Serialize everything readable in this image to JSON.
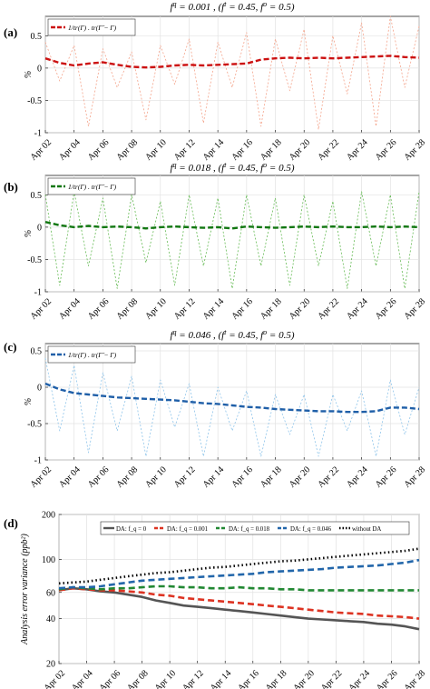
{
  "chart_data": [
    {
      "type": "line",
      "panel_label": "(a)",
      "title": "f^q = 0.001 , (f^t = 0.45, f^o = 0.5)",
      "ylabel": "%",
      "xlabel": "",
      "ylim": [
        -1,
        0.8
      ],
      "yticks": [
        "-1",
        "-0.5",
        "0",
        "0.5"
      ],
      "xticks": [
        "Apr 02",
        "Apr 04",
        "Apr 06",
        "Apr 08",
        "Apr 10",
        "Apr 12",
        "Apr 14",
        "Apr 16",
        "Apr 18",
        "Apr 20",
        "Apr 22",
        "Apr 24",
        "Apr 26",
        "Apr 28"
      ],
      "grid": true,
      "legend": "top-left",
      "series": [
        {
          "name": "1/tr(Γ) . tr(Γ̂ − Γ)",
          "color": "#cc1111",
          "style": "dash-thick",
          "x": [
            2,
            3,
            4,
            5,
            6,
            7,
            8,
            9,
            10,
            11,
            12,
            13,
            14,
            15,
            16,
            17,
            18,
            19,
            20,
            21,
            22,
            23,
            24,
            25,
            26,
            27,
            28
          ],
          "values": [
            0.15,
            0.08,
            0.04,
            0.07,
            0.09,
            0.05,
            0.02,
            0.01,
            0.02,
            0.04,
            0.05,
            0.04,
            0.05,
            0.06,
            0.07,
            0.13,
            0.15,
            0.16,
            0.15,
            0.16,
            0.15,
            0.16,
            0.17,
            0.18,
            0.19,
            0.17,
            0.16
          ]
        },
        {
          "name": "",
          "color": "#f4a38a",
          "style": "dotted-thin",
          "x": [
            2,
            3,
            4,
            5,
            6,
            7,
            8,
            9,
            10,
            11,
            12,
            13,
            14,
            15,
            16,
            17,
            18,
            19,
            20,
            21,
            22,
            23,
            24,
            25,
            26,
            27,
            28
          ],
          "values": [
            0.4,
            -0.2,
            0.35,
            -0.9,
            0.3,
            -0.3,
            0.25,
            -0.8,
            0.35,
            -0.25,
            0.45,
            -0.85,
            0.4,
            -0.3,
            0.55,
            -0.9,
            0.45,
            -0.35,
            0.6,
            -0.95,
            0.5,
            -0.4,
            0.7,
            -0.9,
            0.8,
            -0.3,
            0.65
          ]
        }
      ]
    },
    {
      "type": "line",
      "panel_label": "(b)",
      "title": "f^q = 0.018 , (f^t = 0.45, f^o = 0.5)",
      "ylabel": "%",
      "xlabel": "",
      "ylim": [
        -1,
        0.8
      ],
      "yticks": [
        "-1",
        "-0.5",
        "0",
        "0.5"
      ],
      "xticks": [
        "Apr 02",
        "Apr 04",
        "Apr 06",
        "Apr 08",
        "Apr 10",
        "Apr 12",
        "Apr 14",
        "Apr 16",
        "Apr 18",
        "Apr 20",
        "Apr 22",
        "Apr 24",
        "Apr 26",
        "Apr 28"
      ],
      "grid": true,
      "legend": "top-left",
      "series": [
        {
          "name": "1/tr(Γ) . tr(Γ̂ − Γ)",
          "color": "#117711",
          "style": "dash-thick",
          "x": [
            2,
            3,
            4,
            5,
            6,
            7,
            8,
            9,
            10,
            11,
            12,
            13,
            14,
            15,
            16,
            17,
            18,
            19,
            20,
            21,
            22,
            23,
            24,
            25,
            26,
            27,
            28
          ],
          "values": [
            0.08,
            0.03,
            0.0,
            0.02,
            0.0,
            0.01,
            0.0,
            -0.02,
            0.0,
            0.01,
            0.0,
            -0.01,
            0.0,
            -0.02,
            0.01,
            0.0,
            -0.01,
            0.0,
            0.01,
            0.0,
            0.01,
            0.0,
            0.0,
            0.01,
            0.0,
            0.01,
            0.0
          ]
        },
        {
          "name": "",
          "color": "#66bb55",
          "style": "dotted-thin",
          "x": [
            2,
            3,
            4,
            5,
            6,
            7,
            8,
            9,
            10,
            11,
            12,
            13,
            14,
            15,
            16,
            17,
            18,
            19,
            20,
            21,
            22,
            23,
            24,
            25,
            26,
            27,
            28
          ],
          "values": [
            0.5,
            -0.9,
            0.55,
            -0.6,
            0.45,
            -0.95,
            0.5,
            -0.55,
            0.4,
            -0.9,
            0.5,
            -0.6,
            0.45,
            -0.95,
            0.5,
            -0.6,
            0.45,
            -0.9,
            0.5,
            -0.6,
            0.4,
            -0.95,
            0.55,
            -0.6,
            0.5,
            -0.95,
            0.55
          ]
        }
      ]
    },
    {
      "type": "line",
      "panel_label": "(c)",
      "title": "f^q = 0.046 , (f^t = 0.45, f^o = 0.5)",
      "ylabel": "%",
      "xlabel": "",
      "ylim": [
        -1,
        0.6
      ],
      "yticks": [
        "-1",
        "-0.5",
        "0",
        "0.5"
      ],
      "xticks": [
        "Apr 02",
        "Apr 04",
        "Apr 06",
        "Apr 08",
        "Apr 10",
        "Apr 12",
        "Apr 14",
        "Apr 16",
        "Apr 18",
        "Apr 20",
        "Apr 22",
        "Apr 24",
        "Apr 26",
        "Apr 28"
      ],
      "grid": true,
      "legend": "top-left",
      "series": [
        {
          "name": "1/tr(Γ) . tr(Γ̂ − Γ)",
          "color": "#1f5fa8",
          "style": "dash-thick",
          "x": [
            2,
            3,
            4,
            5,
            6,
            7,
            8,
            9,
            10,
            11,
            12,
            13,
            14,
            15,
            16,
            17,
            18,
            19,
            20,
            21,
            22,
            23,
            24,
            25,
            26,
            27,
            28
          ],
          "values": [
            0.05,
            -0.03,
            -0.08,
            -0.1,
            -0.12,
            -0.14,
            -0.15,
            -0.16,
            -0.17,
            -0.18,
            -0.2,
            -0.22,
            -0.23,
            -0.25,
            -0.27,
            -0.28,
            -0.3,
            -0.31,
            -0.32,
            -0.33,
            -0.33,
            -0.34,
            -0.34,
            -0.33,
            -0.28,
            -0.28,
            -0.3
          ]
        },
        {
          "name": "",
          "color": "#8ec4ea",
          "style": "dotted-thin",
          "x": [
            2,
            3,
            4,
            5,
            6,
            7,
            8,
            9,
            10,
            11,
            12,
            13,
            14,
            15,
            16,
            17,
            18,
            19,
            20,
            21,
            22,
            23,
            24,
            25,
            26,
            27,
            28
          ],
          "values": [
            0.4,
            -0.6,
            0.3,
            -0.9,
            0.2,
            -0.6,
            0.15,
            -0.95,
            0.1,
            -0.55,
            0.05,
            -0.95,
            0.0,
            -0.6,
            -0.05,
            -0.95,
            -0.1,
            -0.65,
            -0.1,
            -0.95,
            -0.1,
            -0.6,
            -0.05,
            -0.95,
            0.1,
            -0.65,
            0.0
          ]
        }
      ]
    },
    {
      "type": "line",
      "panel_label": "(d)",
      "title": "",
      "ylabel": "Analysis error variance (ppb²)",
      "xlabel": "",
      "ylim": [
        20,
        200
      ],
      "yscale": "log",
      "yticks": [
        "20",
        "40",
        "60",
        "100",
        "200"
      ],
      "ytick_values": [
        20,
        40,
        60,
        100,
        200
      ],
      "xticks": [
        "Apr 02",
        "Apr 04",
        "Apr 06",
        "Apr 08",
        "Apr 10",
        "Apr 12",
        "Apr 14",
        "Apr 16",
        "Apr 18",
        "Apr 20",
        "Apr 22",
        "Apr 24",
        "Apr 26",
        "Apr 28"
      ],
      "grid": true,
      "legend": "top",
      "series": [
        {
          "name": "DA: f_q = 0",
          "color": "#555555",
          "style": "solid",
          "x": [
            2,
            3,
            4,
            5,
            6,
            7,
            8,
            9,
            10,
            11,
            12,
            13,
            14,
            15,
            16,
            17,
            18,
            19,
            20,
            21,
            22,
            23,
            24,
            25,
            26,
            27,
            28
          ],
          "values": [
            62,
            64,
            63,
            61,
            60,
            58,
            56,
            53,
            51,
            49,
            48,
            47,
            46,
            45,
            44,
            43,
            42,
            41,
            40,
            39.5,
            39,
            38.5,
            38,
            37,
            36.5,
            35.5,
            34
          ]
        },
        {
          "name": "DA: f_q = 0.001",
          "color": "#dd3322",
          "style": "dash",
          "x": [
            2,
            3,
            4,
            5,
            6,
            7,
            8,
            9,
            10,
            11,
            12,
            13,
            14,
            15,
            16,
            17,
            18,
            19,
            20,
            21,
            22,
            23,
            24,
            25,
            26,
            27,
            28
          ],
          "values": [
            62,
            64,
            63,
            62,
            62,
            61,
            60,
            58,
            57,
            55,
            54,
            53,
            52,
            51,
            50,
            49,
            48,
            47,
            46,
            45,
            44,
            43.5,
            43,
            42,
            41.5,
            41,
            40
          ]
        },
        {
          "name": "DA: f_q = 0.018",
          "color": "#228833",
          "style": "dash",
          "x": [
            2,
            3,
            4,
            5,
            6,
            7,
            8,
            9,
            10,
            11,
            12,
            13,
            14,
            15,
            16,
            17,
            18,
            19,
            20,
            21,
            22,
            23,
            24,
            25,
            26,
            27,
            28
          ],
          "values": [
            63,
            65,
            64,
            63,
            64,
            64,
            65,
            66,
            66,
            65,
            65,
            64,
            64,
            65,
            64,
            64,
            63,
            63,
            62,
            62,
            62,
            62,
            62,
            62,
            62,
            62,
            62
          ]
        },
        {
          "name": "DA: f_q = 0.046",
          "color": "#2266aa",
          "style": "dash",
          "x": [
            2,
            3,
            4,
            5,
            6,
            7,
            8,
            9,
            10,
            11,
            12,
            13,
            14,
            15,
            16,
            17,
            18,
            19,
            20,
            21,
            22,
            23,
            24,
            25,
            26,
            27,
            28
          ],
          "values": [
            64,
            65,
            65,
            66,
            68,
            70,
            72,
            73,
            74,
            75,
            76,
            77,
            78,
            79,
            80,
            82,
            83,
            84,
            85,
            86,
            88,
            89,
            90,
            91,
            93,
            95,
            99
          ]
        },
        {
          "name": "without DA",
          "color": "#000000",
          "style": "dotted",
          "x": [
            2,
            3,
            4,
            5,
            6,
            7,
            8,
            9,
            10,
            11,
            12,
            13,
            14,
            15,
            16,
            17,
            18,
            19,
            20,
            21,
            22,
            23,
            24,
            25,
            26,
            27,
            28
          ],
          "values": [
            69,
            70,
            71,
            73,
            75,
            77,
            79,
            81,
            82,
            84,
            86,
            88,
            89,
            91,
            93,
            95,
            97,
            98,
            100,
            102,
            104,
            106,
            108,
            110,
            112,
            114,
            118
          ]
        }
      ]
    }
  ]
}
